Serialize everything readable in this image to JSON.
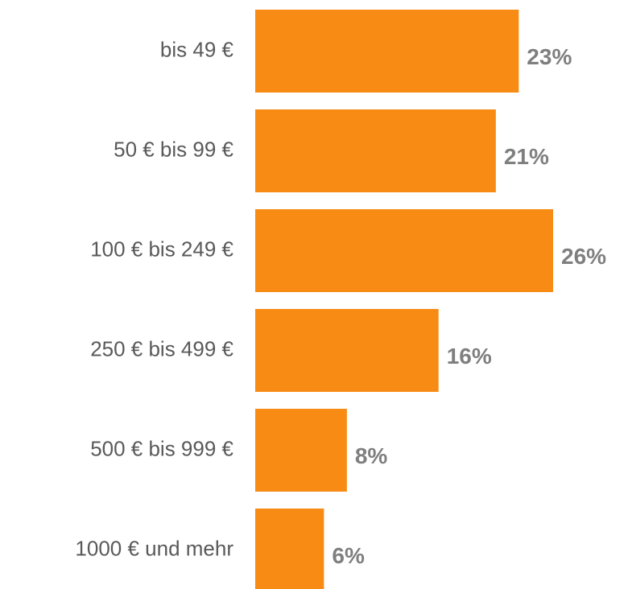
{
  "chart_data": {
    "type": "barh",
    "categories": [
      "bis 49 €",
      "50 € bis 99 €",
      "100 € bis 249 €",
      "250 € bis 499 €",
      "500 € bis 999 €",
      "1000 € und mehr"
    ],
    "values": [
      23,
      21,
      26,
      16,
      8,
      6
    ],
    "value_labels": [
      "23%",
      "21%",
      "26%",
      "16%",
      "8%",
      "6%"
    ],
    "color": "#f78b13"
  }
}
